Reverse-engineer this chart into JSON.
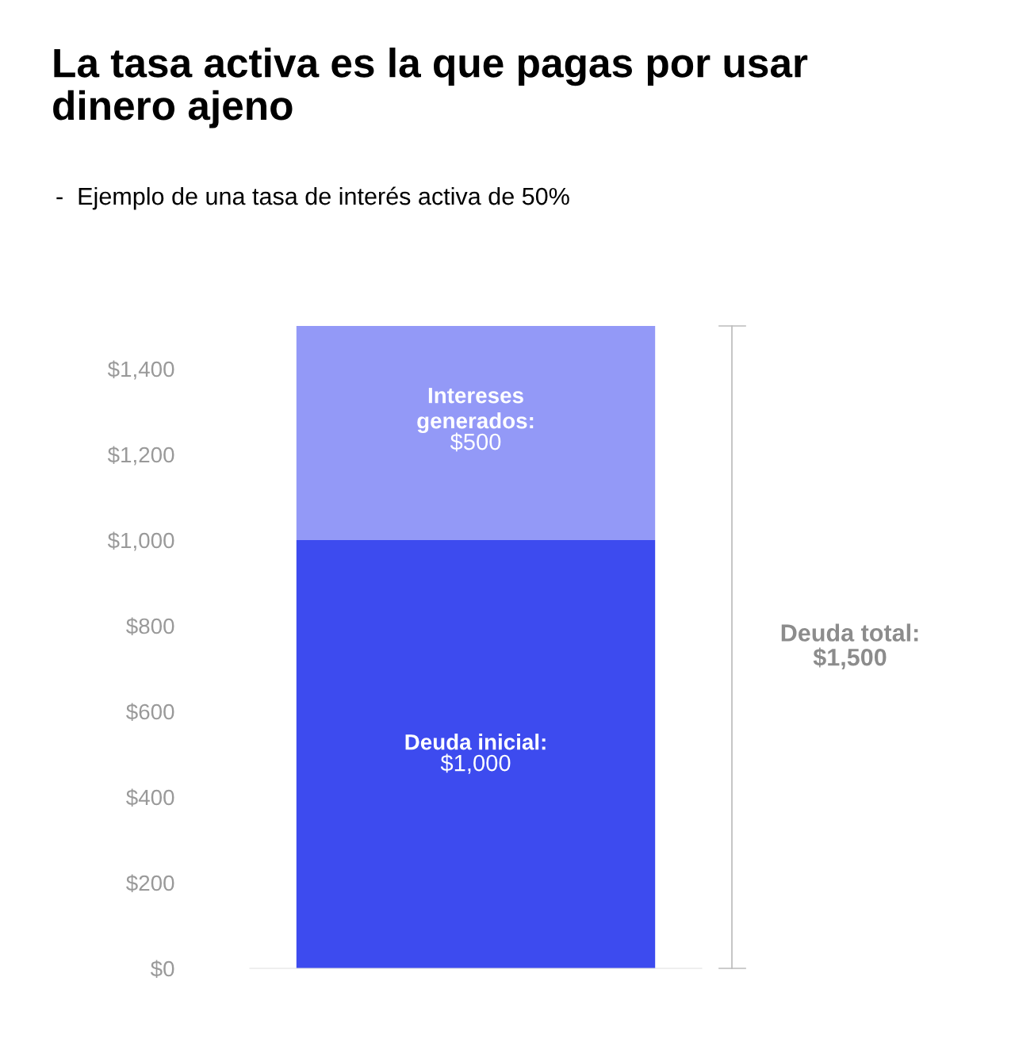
{
  "chart_data": {
    "type": "bar",
    "stacked": true,
    "title": "La tasa activa es la que pagas por usar\ndinero ajeno",
    "subtitle": "-  Ejemplo de una tasa de interés activa de 50%",
    "categories": [
      null
    ],
    "series": [
      {
        "name": "Deuda inicial:",
        "color": "#3d4bef",
        "values": [
          1000
        ],
        "value_labels": [
          "$1,000"
        ]
      },
      {
        "name": "Intereses\ngenerados:",
        "color": "#9399f7",
        "values": [
          500
        ],
        "value_labels": [
          "$500"
        ]
      }
    ],
    "ylim": [
      0,
      1500
    ],
    "yticks": [
      {
        "value": 0,
        "label": "$0"
      },
      {
        "value": 200,
        "label": "$200"
      },
      {
        "value": 400,
        "label": "$400"
      },
      {
        "value": 600,
        "label": "$600"
      },
      {
        "value": 800,
        "label": "$800"
      },
      {
        "value": 1000,
        "label": "$1,000"
      },
      {
        "value": 1200,
        "label": "$1,200"
      },
      {
        "value": 1400,
        "label": "$1,400"
      }
    ],
    "annotations": [
      "Deuda total:\n$1,500"
    ],
    "grid": false,
    "legend": false
  }
}
